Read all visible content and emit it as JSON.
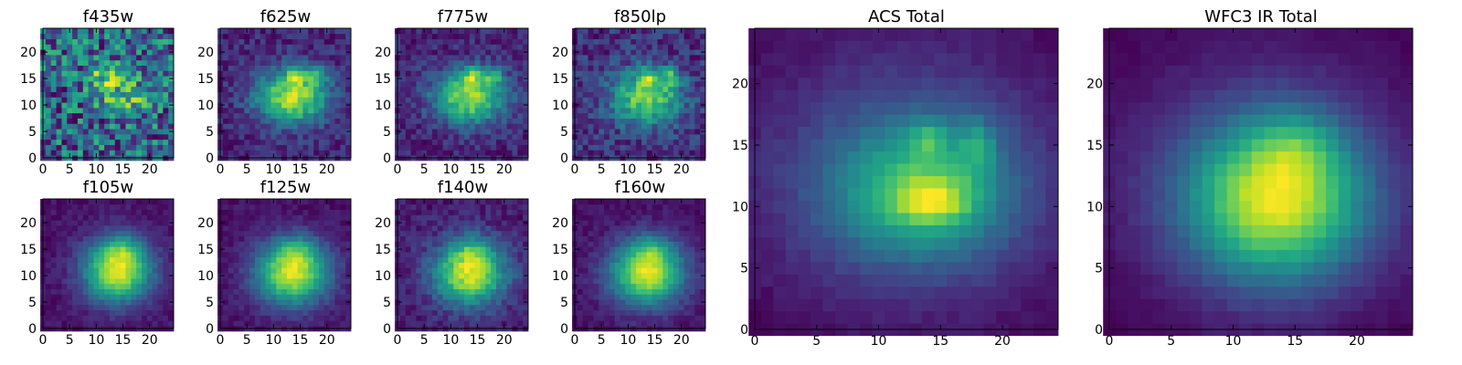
{
  "chart_data": [
    {
      "type": "heatmap",
      "title": "f435w",
      "xticks": [
        0,
        5,
        10,
        15,
        20
      ],
      "yticks": [
        0,
        5,
        10,
        15,
        20
      ],
      "xlim": [
        0,
        24.5
      ],
      "ylim": [
        0,
        24.5
      ],
      "grid_size": 25,
      "colormap": "viridis",
      "blobs": [
        {
          "x": 13.5,
          "y": 15.5,
          "amp": 0.5,
          "sx": 3.0,
          "sy": 1.6
        },
        {
          "x": 15,
          "y": 11,
          "amp": 0.35,
          "sx": 2.8,
          "sy": 1.4
        }
      ],
      "noise": 0.28,
      "background": 0.22,
      "seed": 11
    },
    {
      "type": "heatmap",
      "title": "f625w",
      "xticks": [
        0,
        5,
        10,
        15,
        20
      ],
      "yticks": [
        0,
        5,
        10,
        15,
        20
      ],
      "xlim": [
        0,
        24.5
      ],
      "ylim": [
        0,
        24.5
      ],
      "grid_size": 25,
      "colormap": "viridis",
      "blobs": [
        {
          "x": 13.5,
          "y": 11.5,
          "amp": 0.55,
          "sx": 4.8,
          "sy": 3.6
        },
        {
          "x": 14,
          "y": 15.5,
          "amp": 0.3,
          "sx": 1.2,
          "sy": 1.2
        },
        {
          "x": 18,
          "y": 15.5,
          "amp": 0.28,
          "sx": 1.2,
          "sy": 1.2
        }
      ],
      "noise": 0.08,
      "background": 0.06,
      "seed": 22
    },
    {
      "type": "heatmap",
      "title": "f775w",
      "xticks": [
        0,
        5,
        10,
        15,
        20
      ],
      "yticks": [
        0,
        5,
        10,
        15,
        20
      ],
      "xlim": [
        0,
        24.5
      ],
      "ylim": [
        0,
        24.5
      ],
      "grid_size": 25,
      "colormap": "viridis",
      "blobs": [
        {
          "x": 13.5,
          "y": 11.5,
          "amp": 0.55,
          "sx": 4.8,
          "sy": 3.6
        },
        {
          "x": 14,
          "y": 15.5,
          "amp": 0.3,
          "sx": 1.2,
          "sy": 1.2
        },
        {
          "x": 18,
          "y": 15.5,
          "amp": 0.28,
          "sx": 1.2,
          "sy": 1.2
        }
      ],
      "noise": 0.08,
      "background": 0.06,
      "seed": 33
    },
    {
      "type": "heatmap",
      "title": "f850lp",
      "xticks": [
        0,
        5,
        10,
        15,
        20
      ],
      "yticks": [
        0,
        5,
        10,
        15,
        20
      ],
      "xlim": [
        0,
        24.5
      ],
      "ylim": [
        0,
        24.5
      ],
      "grid_size": 25,
      "colormap": "viridis",
      "blobs": [
        {
          "x": 13.5,
          "y": 11.5,
          "amp": 0.55,
          "sx": 4.8,
          "sy": 3.6
        },
        {
          "x": 14,
          "y": 15.5,
          "amp": 0.3,
          "sx": 1.2,
          "sy": 1.2
        },
        {
          "x": 18,
          "y": 15.5,
          "amp": 0.28,
          "sx": 1.2,
          "sy": 1.2
        }
      ],
      "noise": 0.12,
      "background": 0.08,
      "seed": 44
    },
    {
      "type": "heatmap",
      "title": "f105w",
      "xticks": [
        0,
        5,
        10,
        15,
        20
      ],
      "yticks": [
        0,
        5,
        10,
        15,
        20
      ],
      "xlim": [
        0,
        24.5
      ],
      "ylim": [
        0,
        24.5
      ],
      "grid_size": 25,
      "colormap": "viridis",
      "blobs": [
        {
          "x": 14,
          "y": 11,
          "amp": 0.85,
          "sx": 4.5,
          "sy": 4.2
        },
        {
          "x": 15,
          "y": 15,
          "amp": 0.2,
          "sx": 2.5,
          "sy": 2.0
        }
      ],
      "noise": 0.05,
      "background": 0.12,
      "seed": 55
    },
    {
      "type": "heatmap",
      "title": "f125w",
      "xticks": [
        0,
        5,
        10,
        15,
        20
      ],
      "yticks": [
        0,
        5,
        10,
        15,
        20
      ],
      "xlim": [
        0,
        24.5
      ],
      "ylim": [
        0,
        24.5
      ],
      "grid_size": 25,
      "colormap": "viridis",
      "blobs": [
        {
          "x": 13.5,
          "y": 10.5,
          "amp": 0.85,
          "sx": 4.8,
          "sy": 4.2
        },
        {
          "x": 14.5,
          "y": 15,
          "amp": 0.2,
          "sx": 2.5,
          "sy": 2.0
        }
      ],
      "noise": 0.05,
      "background": 0.12,
      "seed": 66
    },
    {
      "type": "heatmap",
      "title": "f140w",
      "xticks": [
        0,
        5,
        10,
        15,
        20
      ],
      "yticks": [
        0,
        5,
        10,
        15,
        20
      ],
      "xlim": [
        0,
        24.5
      ],
      "ylim": [
        0,
        24.5
      ],
      "grid_size": 25,
      "colormap": "viridis",
      "blobs": [
        {
          "x": 13.5,
          "y": 10.5,
          "amp": 0.85,
          "sx": 4.8,
          "sy": 4.2
        },
        {
          "x": 14.5,
          "y": 15,
          "amp": 0.2,
          "sx": 2.5,
          "sy": 2.0
        }
      ],
      "noise": 0.08,
      "background": 0.12,
      "seed": 77
    },
    {
      "type": "heatmap",
      "title": "f160w",
      "xticks": [
        0,
        5,
        10,
        15,
        20
      ],
      "yticks": [
        0,
        5,
        10,
        15,
        20
      ],
      "xlim": [
        0,
        24.5
      ],
      "ylim": [
        0,
        24.5
      ],
      "grid_size": 25,
      "colormap": "viridis",
      "blobs": [
        {
          "x": 13.5,
          "y": 10.5,
          "amp": 0.85,
          "sx": 4.8,
          "sy": 4.2
        },
        {
          "x": 14.5,
          "y": 15,
          "amp": 0.2,
          "sx": 2.5,
          "sy": 2.0
        }
      ],
      "noise": 0.05,
      "background": 0.12,
      "seed": 88
    },
    {
      "type": "heatmap",
      "title": "ACS Total",
      "xticks": [
        0,
        5,
        10,
        15,
        20
      ],
      "yticks": [
        0,
        5,
        10,
        15,
        20
      ],
      "xlim": [
        0,
        24.5
      ],
      "ylim": [
        0,
        24.5
      ],
      "grid_size": 25,
      "colormap": "viridis",
      "blobs": [
        {
          "x": 13.5,
          "y": 11,
          "amp": 0.5,
          "sx": 4.8,
          "sy": 3.6
        },
        {
          "x": 14.5,
          "y": 10.5,
          "amp": 0.35,
          "sx": 2.0,
          "sy": 1.3
        },
        {
          "x": 14,
          "y": 15.5,
          "amp": 0.28,
          "sx": 1.1,
          "sy": 1.1
        },
        {
          "x": 18,
          "y": 15,
          "amp": 0.28,
          "sx": 1.0,
          "sy": 1.6
        },
        {
          "x": 12.5,
          "y": 12.5,
          "amp": 0.35,
          "sx": 9.0,
          "sy": 7.5
        }
      ],
      "noise": 0.03,
      "background": 0.04,
      "seed": 99
    },
    {
      "type": "heatmap",
      "title": "WFC3 IR Total",
      "xticks": [
        0,
        5,
        10,
        15,
        20
      ],
      "yticks": [
        0,
        5,
        10,
        15,
        20
      ],
      "xlim": [
        0,
        24.5
      ],
      "ylim": [
        0,
        24.5
      ],
      "grid_size": 25,
      "colormap": "viridis",
      "blobs": [
        {
          "x": 13.5,
          "y": 10.5,
          "amp": 0.85,
          "sx": 5.0,
          "sy": 4.4
        },
        {
          "x": 15,
          "y": 15,
          "amp": 0.2,
          "sx": 2.5,
          "sy": 2.0
        },
        {
          "x": 12.5,
          "y": 12,
          "amp": 0.2,
          "sx": 10,
          "sy": 9
        }
      ],
      "noise": 0.02,
      "background": 0.1,
      "seed": 111
    }
  ]
}
